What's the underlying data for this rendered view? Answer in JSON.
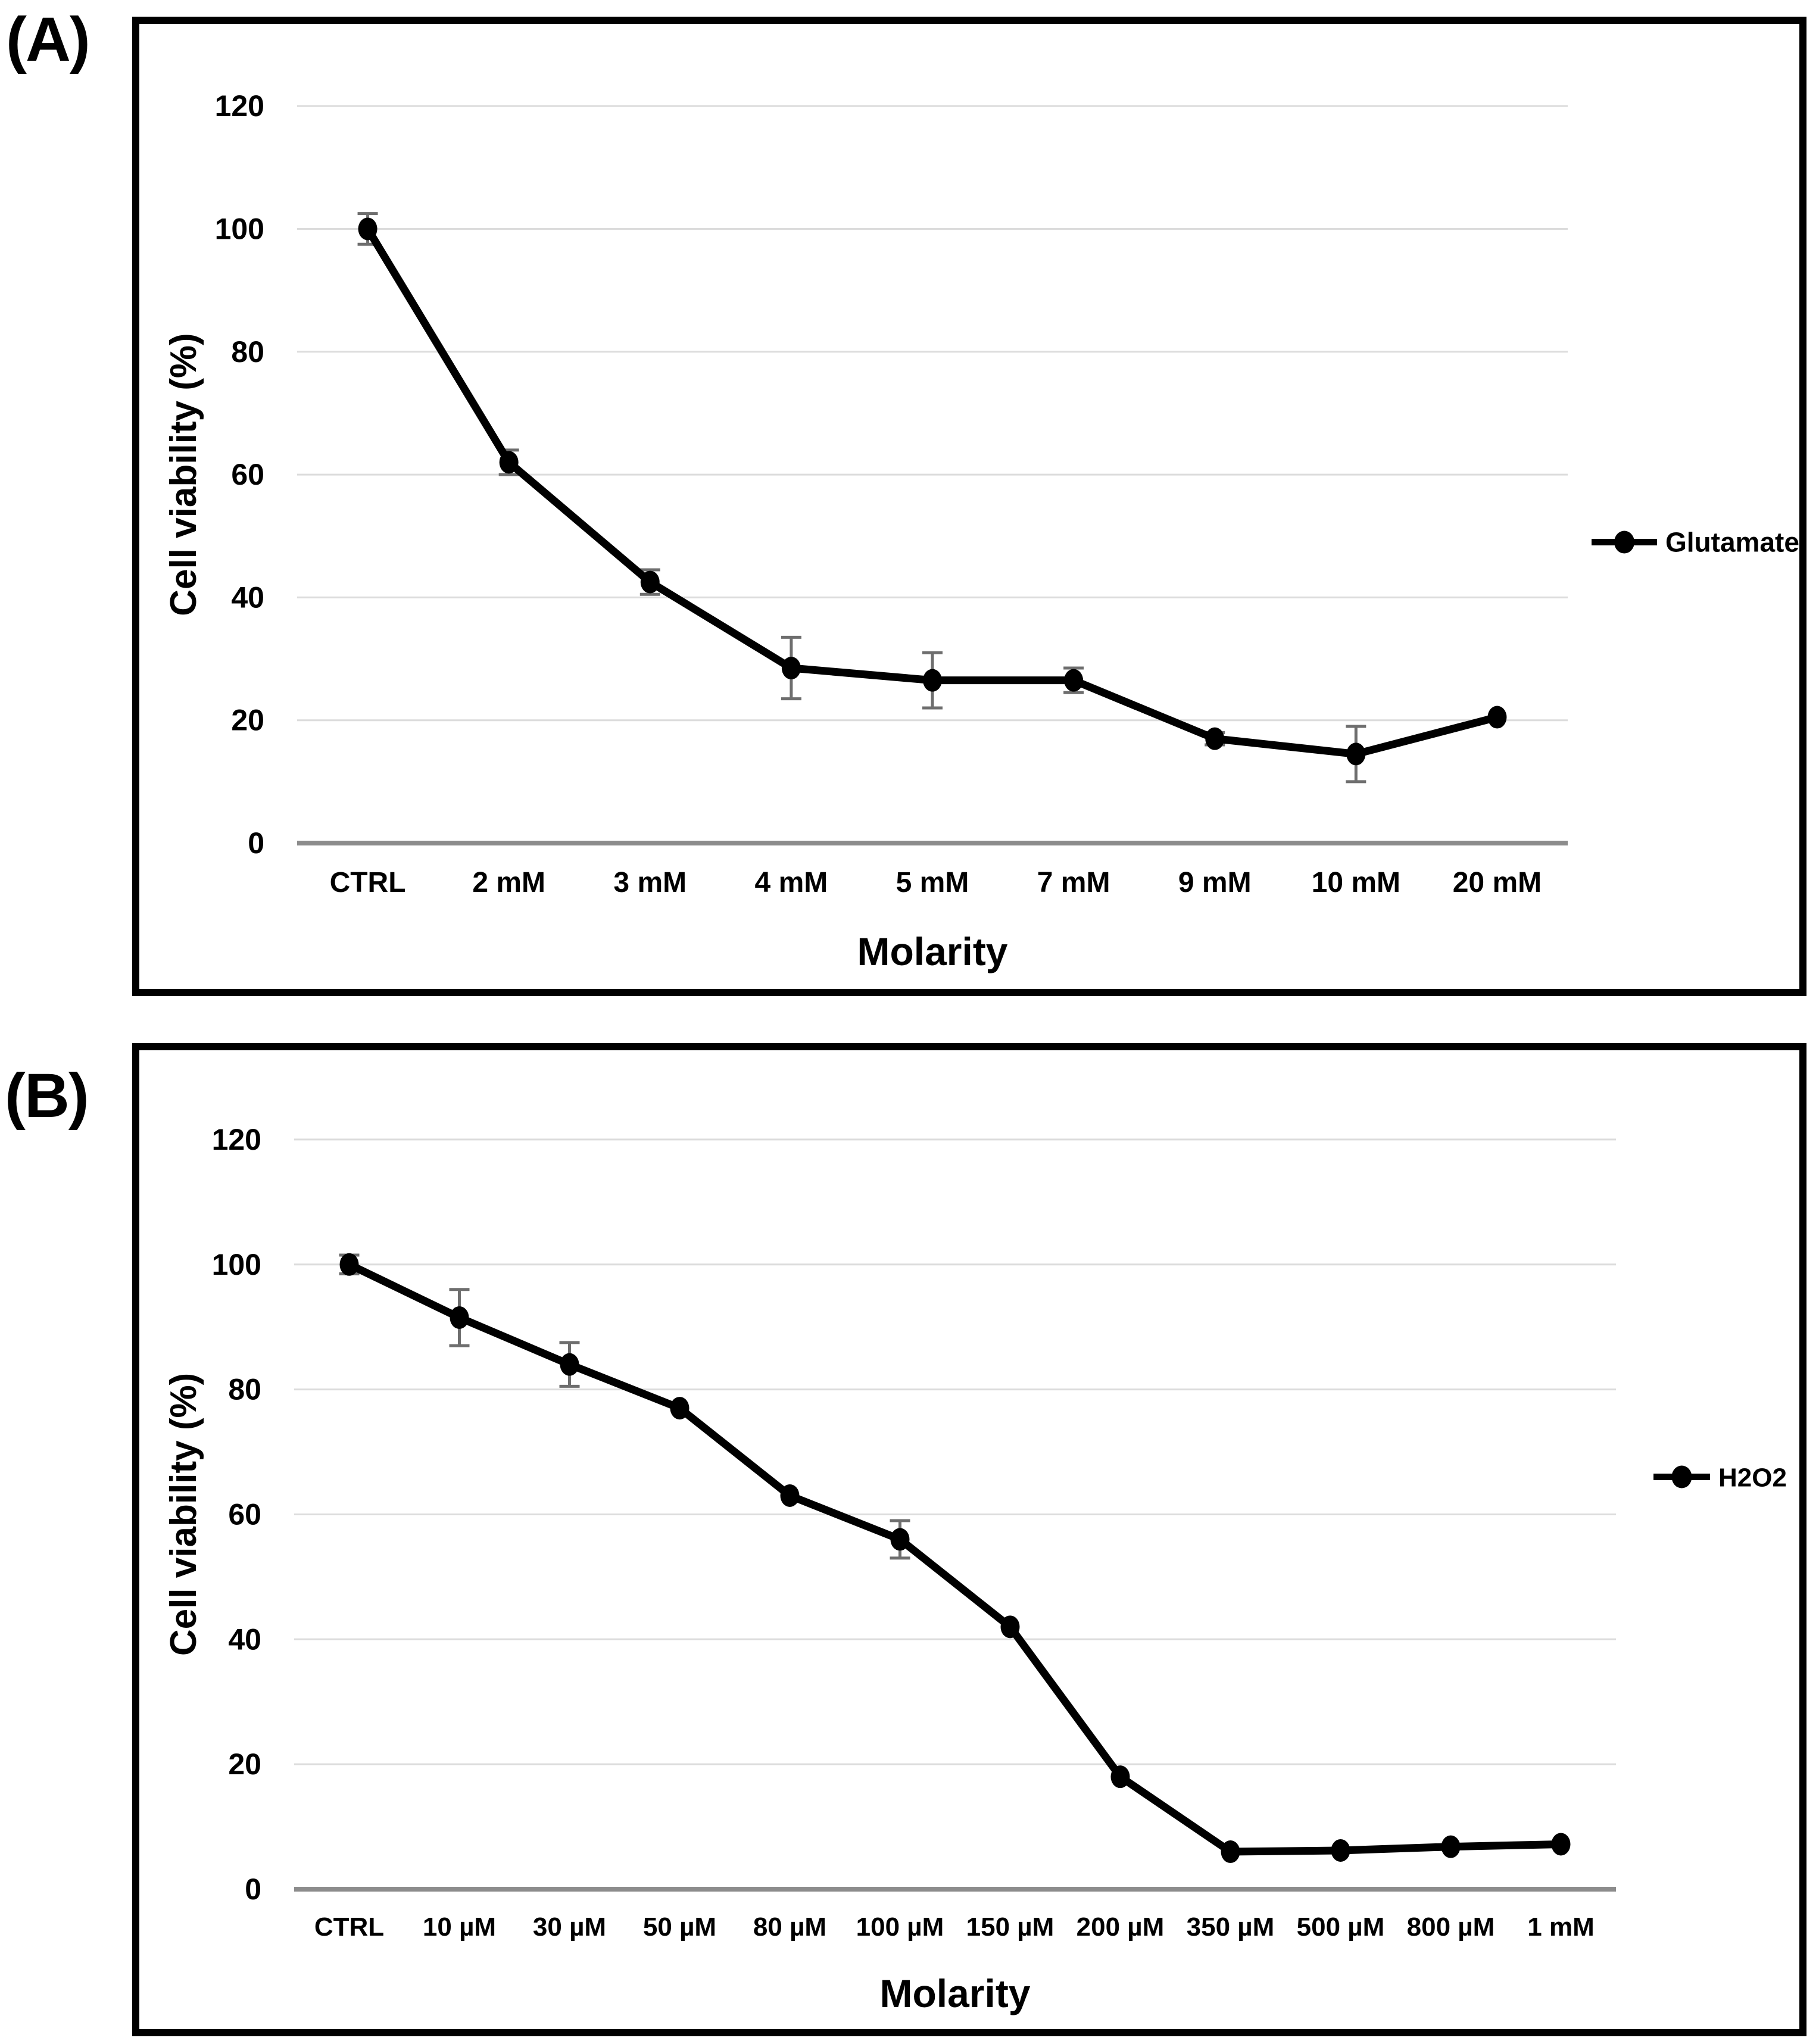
{
  "figure": {
    "panel_a_label": "(A)",
    "panel_b_label": "(B)"
  },
  "colors": {
    "series": "#000000",
    "gridline": "#dcdcdc",
    "baseline": "#8c8c8c",
    "error_bar": "#6e6e6e",
    "text": "#000000",
    "panel_border": "#000000",
    "background": "#ffffff"
  },
  "chart_data": [
    {
      "type": "line",
      "panel": "A",
      "title": "",
      "categories": [
        "CTRL",
        "2 mM",
        "3 mM",
        "4 mM",
        "5 mM",
        "7 mM",
        "9 mM",
        "10 mM",
        "20 mM"
      ],
      "series": [
        {
          "name": "Glutamate",
          "values": [
            100,
            62,
            42.5,
            28.5,
            26.5,
            26.5,
            17,
            14.5,
            20.5
          ],
          "errors": [
            2.5,
            2,
            2,
            5,
            4.5,
            2,
            1,
            4.5,
            0
          ]
        }
      ],
      "xlabel": "Molarity",
      "ylabel": "Cell viability (%)",
      "yticks": [
        0,
        20,
        40,
        60,
        80,
        100,
        120
      ],
      "ylim": [
        0,
        130
      ],
      "grid": true,
      "legend": {
        "label": "Glutamate",
        "position": "right",
        "y_value": 49
      }
    },
    {
      "type": "line",
      "panel": "B",
      "title": "",
      "categories": [
        "CTRL",
        "10 µM",
        "30 µM",
        "50 µM",
        "80 µM",
        "100 µM",
        "150 µM",
        "200 µM",
        "350 µM",
        "500 µM",
        "800 µM",
        "1 mM"
      ],
      "series": [
        {
          "name": "H2O2",
          "values": [
            100,
            91.5,
            84,
            77,
            63,
            56,
            42,
            18,
            6,
            6.2,
            6.8,
            7.2
          ],
          "errors": [
            1.5,
            4.5,
            3.5,
            0,
            0,
            3,
            0,
            0,
            0,
            0,
            0,
            0
          ]
        }
      ],
      "xlabel": "Molarity",
      "ylabel": "Cell viability (%)",
      "yticks": [
        0,
        20,
        40,
        60,
        80,
        100,
        120
      ],
      "ylim": [
        0,
        130
      ],
      "grid": true,
      "legend": {
        "label": "H2O2",
        "position": "right",
        "y_value": 66
      }
    }
  ]
}
